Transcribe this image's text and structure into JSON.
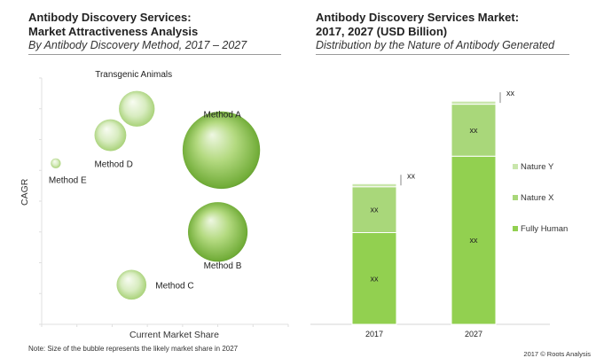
{
  "left_panel": {
    "title_line1": "Antibody Discovery Services:",
    "title_line2": "Market Attractiveness Analysis",
    "subtitle": "By Antibody Discovery Method, 2017 – 2027",
    "ylabel": "CAGR",
    "xlabel": "Current Market Share",
    "note": "Note: Size of the bubble represents the likely market share in 2027"
  },
  "right_panel": {
    "title_line1": "Antibody Discovery Services Market:",
    "title_line2": "2017, 2027 (USD Billion)",
    "subtitle": "Distribution by the Nature of Antibody Generated"
  },
  "copyright": "2017 © Roots Analysis",
  "colors": {
    "bubble_dark": "#6aa82e",
    "bubble_light": "#c4e0a2",
    "fully_human": "#92d050",
    "nature_x": "#a9d77a",
    "nature_y": "#c9e6ac",
    "rule": "#9a9a9a"
  },
  "chart_data": [
    {
      "type": "scatter",
      "subtype": "bubble",
      "xlabel": "Current Market Share",
      "ylabel": "CAGR",
      "grid": false,
      "points": [
        {
          "label": "Transgenic Animals",
          "x": 27,
          "y": 24.5,
          "size": 3.6
        },
        {
          "label": "Method D",
          "x": 19.5,
          "y": 21.5,
          "size": 3.2
        },
        {
          "label": "Method E",
          "x": 4,
          "y": 18.3,
          "size": 1.0
        },
        {
          "label": "Method A",
          "x": 51,
          "y": 19.8,
          "size": 7.8
        },
        {
          "label": "Method B",
          "x": 50,
          "y": 10.5,
          "size": 6.0
        },
        {
          "label": "Method C",
          "x": 25.5,
          "y": 4.5,
          "size": 3.0
        }
      ]
    },
    {
      "type": "bar",
      "stacked": true,
      "categories": [
        "2017",
        "2027"
      ],
      "series": [
        {
          "name": "Fully Human",
          "values": [
            1.5,
            2.75
          ],
          "labels": [
            "xx",
            "xx"
          ]
        },
        {
          "name": "Nature X",
          "values": [
            0.75,
            0.85
          ],
          "labels": [
            "xx",
            "xx"
          ]
        },
        {
          "name": "Nature Y",
          "values": [
            0.05,
            0.05
          ],
          "labels": [
            "",
            ""
          ]
        }
      ],
      "total_labels": [
        "xx",
        "xx"
      ],
      "legend": [
        "Nature Y",
        "Nature X",
        "Fully Human"
      ],
      "legend_position": "right",
      "ylim": [
        0,
        3.7
      ]
    }
  ]
}
